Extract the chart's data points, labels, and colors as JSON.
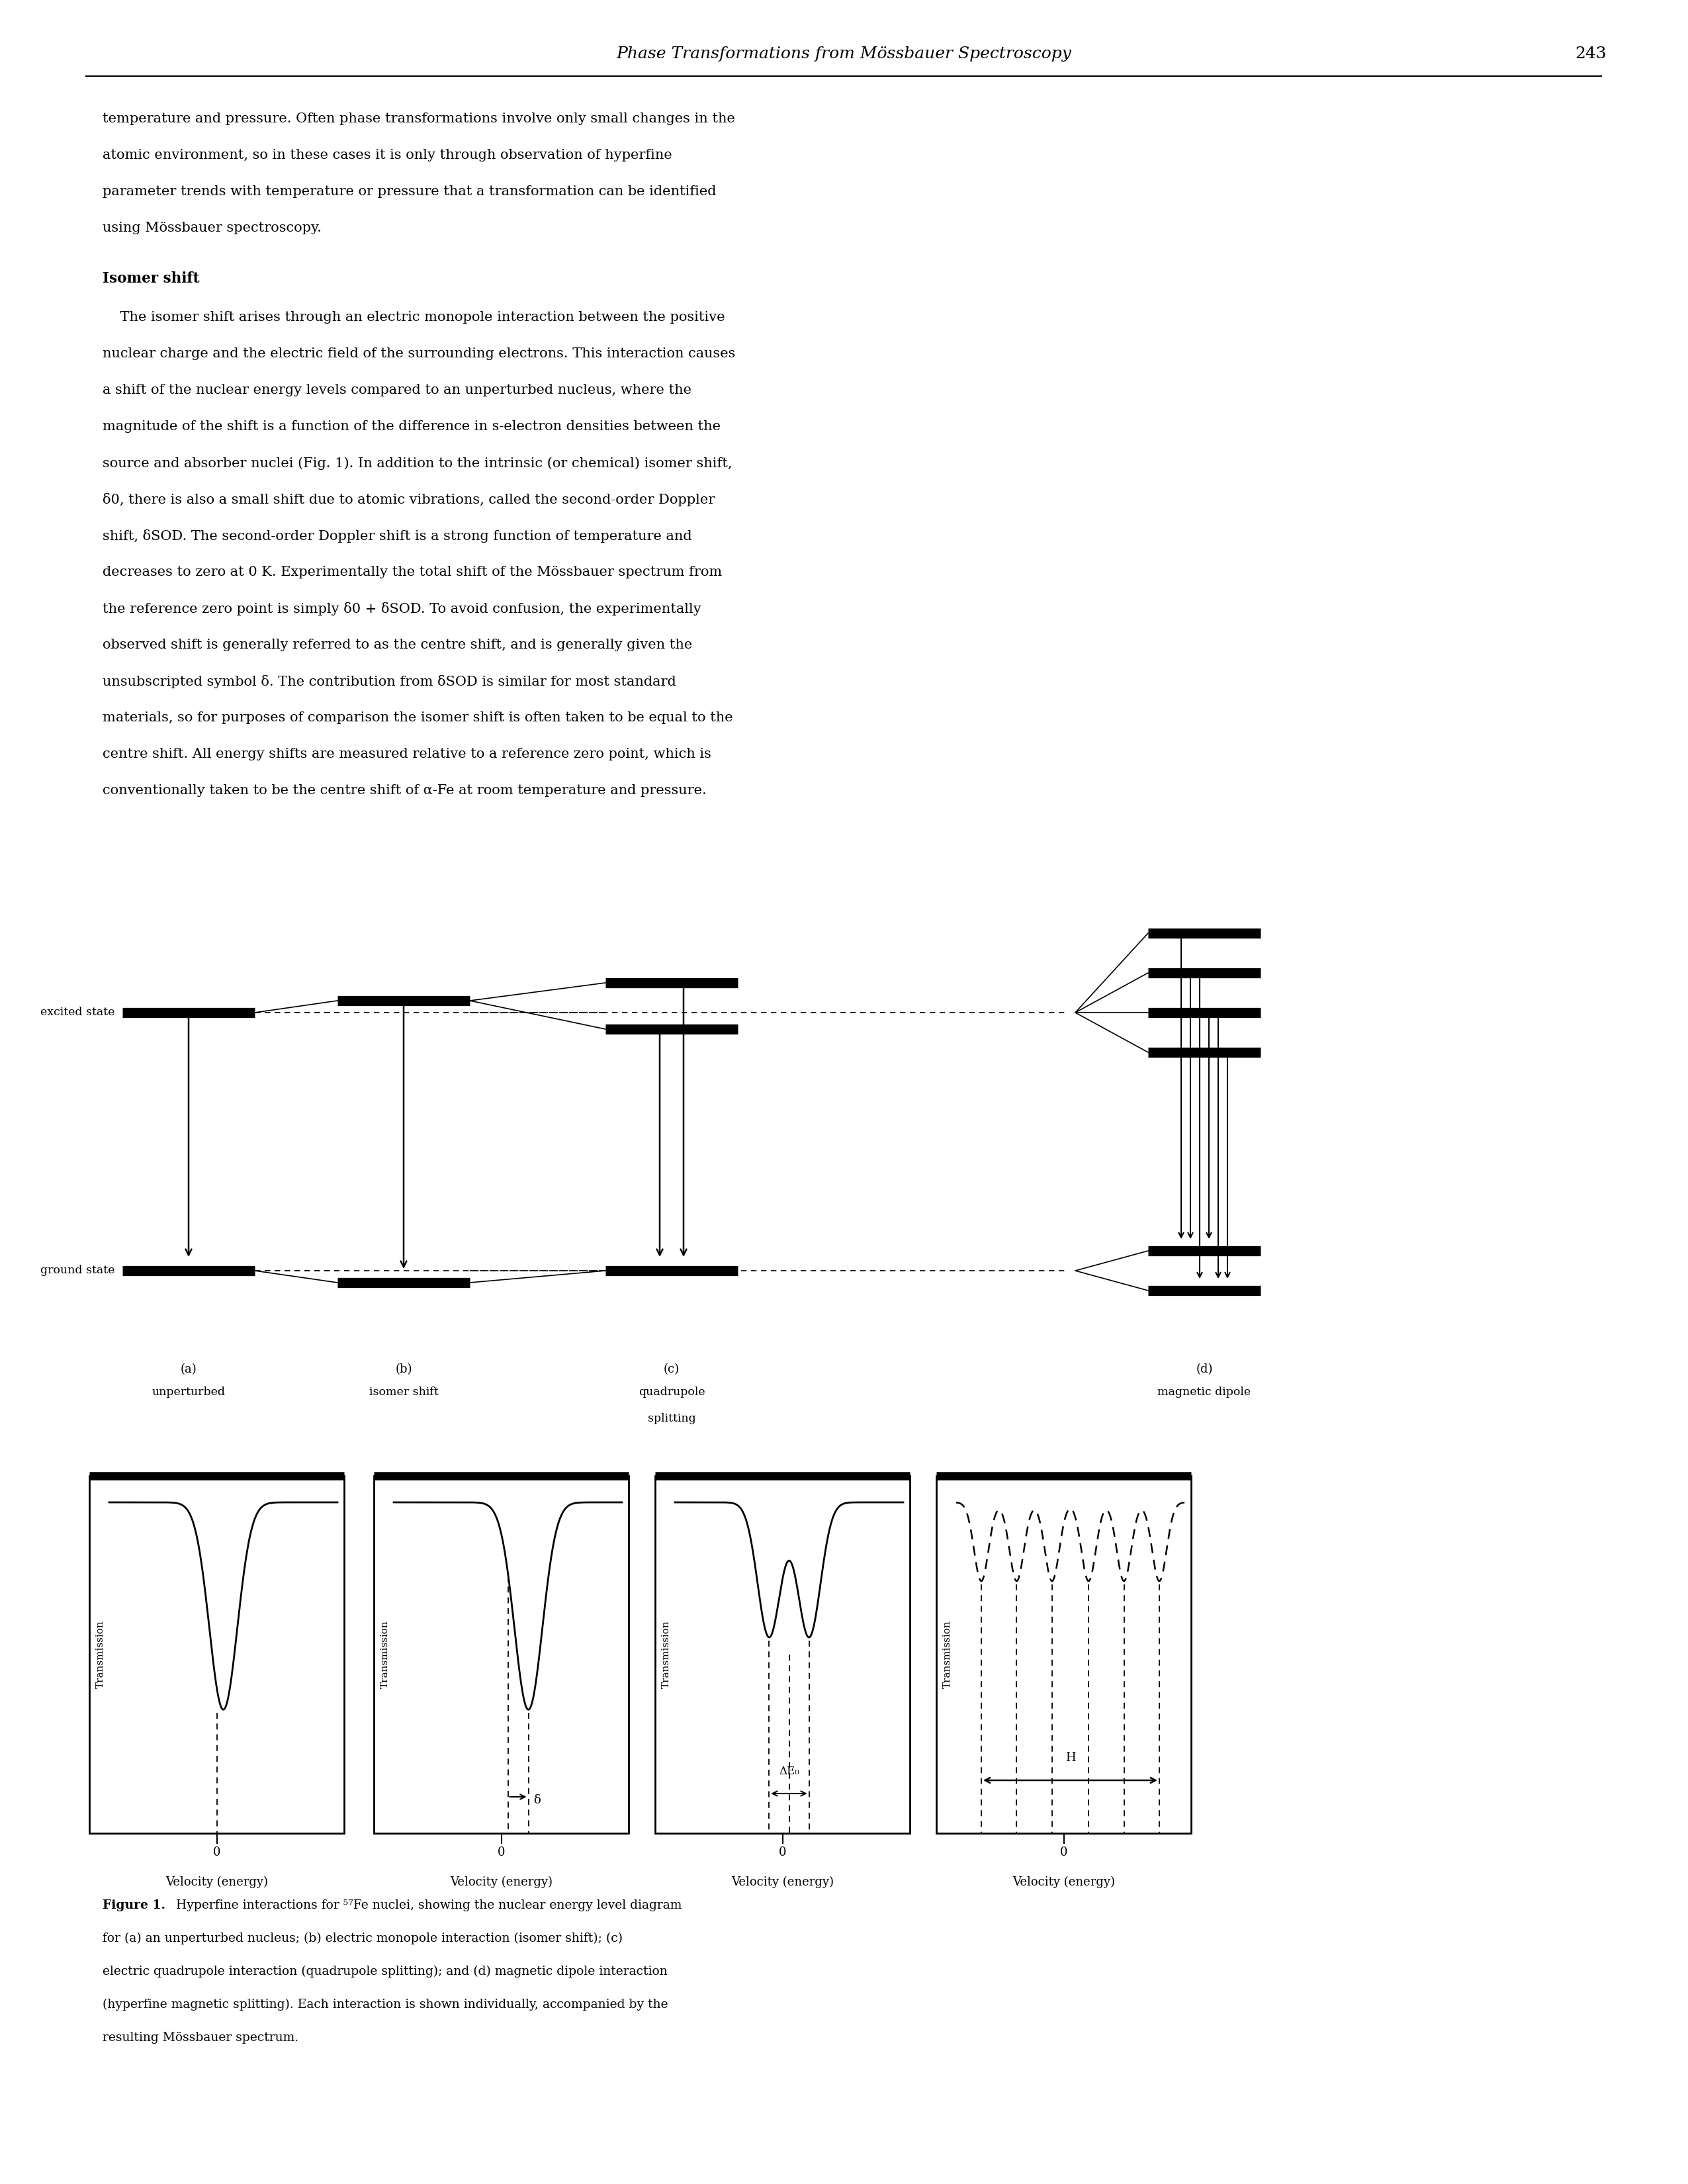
{
  "page_title": "Phase Transformations from Mössbauer Spectroscopy",
  "page_number": "243",
  "body_text": "temperature and pressure. Often phase transformations involve only small changes in the\natomic environment, so in these cases it is only through observation of hyperfine\nparameter trends with temperature or pressure that a transformation can be identified\nusing Mössbauer spectroscopy.",
  "section_header": "Isomer shift",
  "isomer_paragraph": "    The isomer shift arises through an electric monopole interaction between the positive\nnuclear charge and the electric field of the surrounding electrons. This interaction causes\na shift of the nuclear energy levels compared to an unperturbed nucleus, where the\nmagnitude of the shift is a function of the difference in s-electron densities between the\nsource and absorber nuclei (Fig. 1). In addition to the intrinsic (or chemical) isomer shift,\nδ0, there is also a small shift due to atomic vibrations, called the second-order Doppler\nshift, δSOD. The second-order Doppler shift is a strong function of temperature and\ndecreases to zero at 0 K. Experimentally the total shift of the Mössbauer spectrum from\nthe reference zero point is simply δ0 + δSOD. To avoid confusion, the experimentally\nobserved shift is generally referred to as the centre shift, and is generally given the\nunsubscripted symbol δ. The contribution from δSOD is similar for most standard\nmaterials, so for purposes of comparison the isomer shift is often taken to be equal to the\ncentre shift. All energy shifts are measured relative to a reference zero point, which is\nconventionally taken to be the centre shift of α-Fe at room temperature and pressure.",
  "fig_caption_bold": "Figure 1.",
  "fig_caption_normal": " Hyperfine interactions for ⁵⁷Fe nuclei, showing the nuclear energy level diagram for (a) an unperturbed nucleus; (b) electric monopole interaction (isomer shift); (c) electric quadrupole interaction (quadrupole splitting); and (d) magnetic dipole interaction (hyperfine magnetic splitting). Each interaction is shown individually, accompanied by the resulting Mössbauer spectrum.",
  "panel_labels": [
    "(a)",
    "(b)",
    "(c)",
    "(d)"
  ],
  "panel_sublabels": [
    "unperturbed",
    "isomer shift",
    "quadrupole\nsplitting",
    "magnetic dipole"
  ],
  "ylabel": "Transmission",
  "xlabel": "Velocity (energy)",
  "excited_state_label": "excited state",
  "ground_state_label": "ground state",
  "bg_color": "#ffffff"
}
